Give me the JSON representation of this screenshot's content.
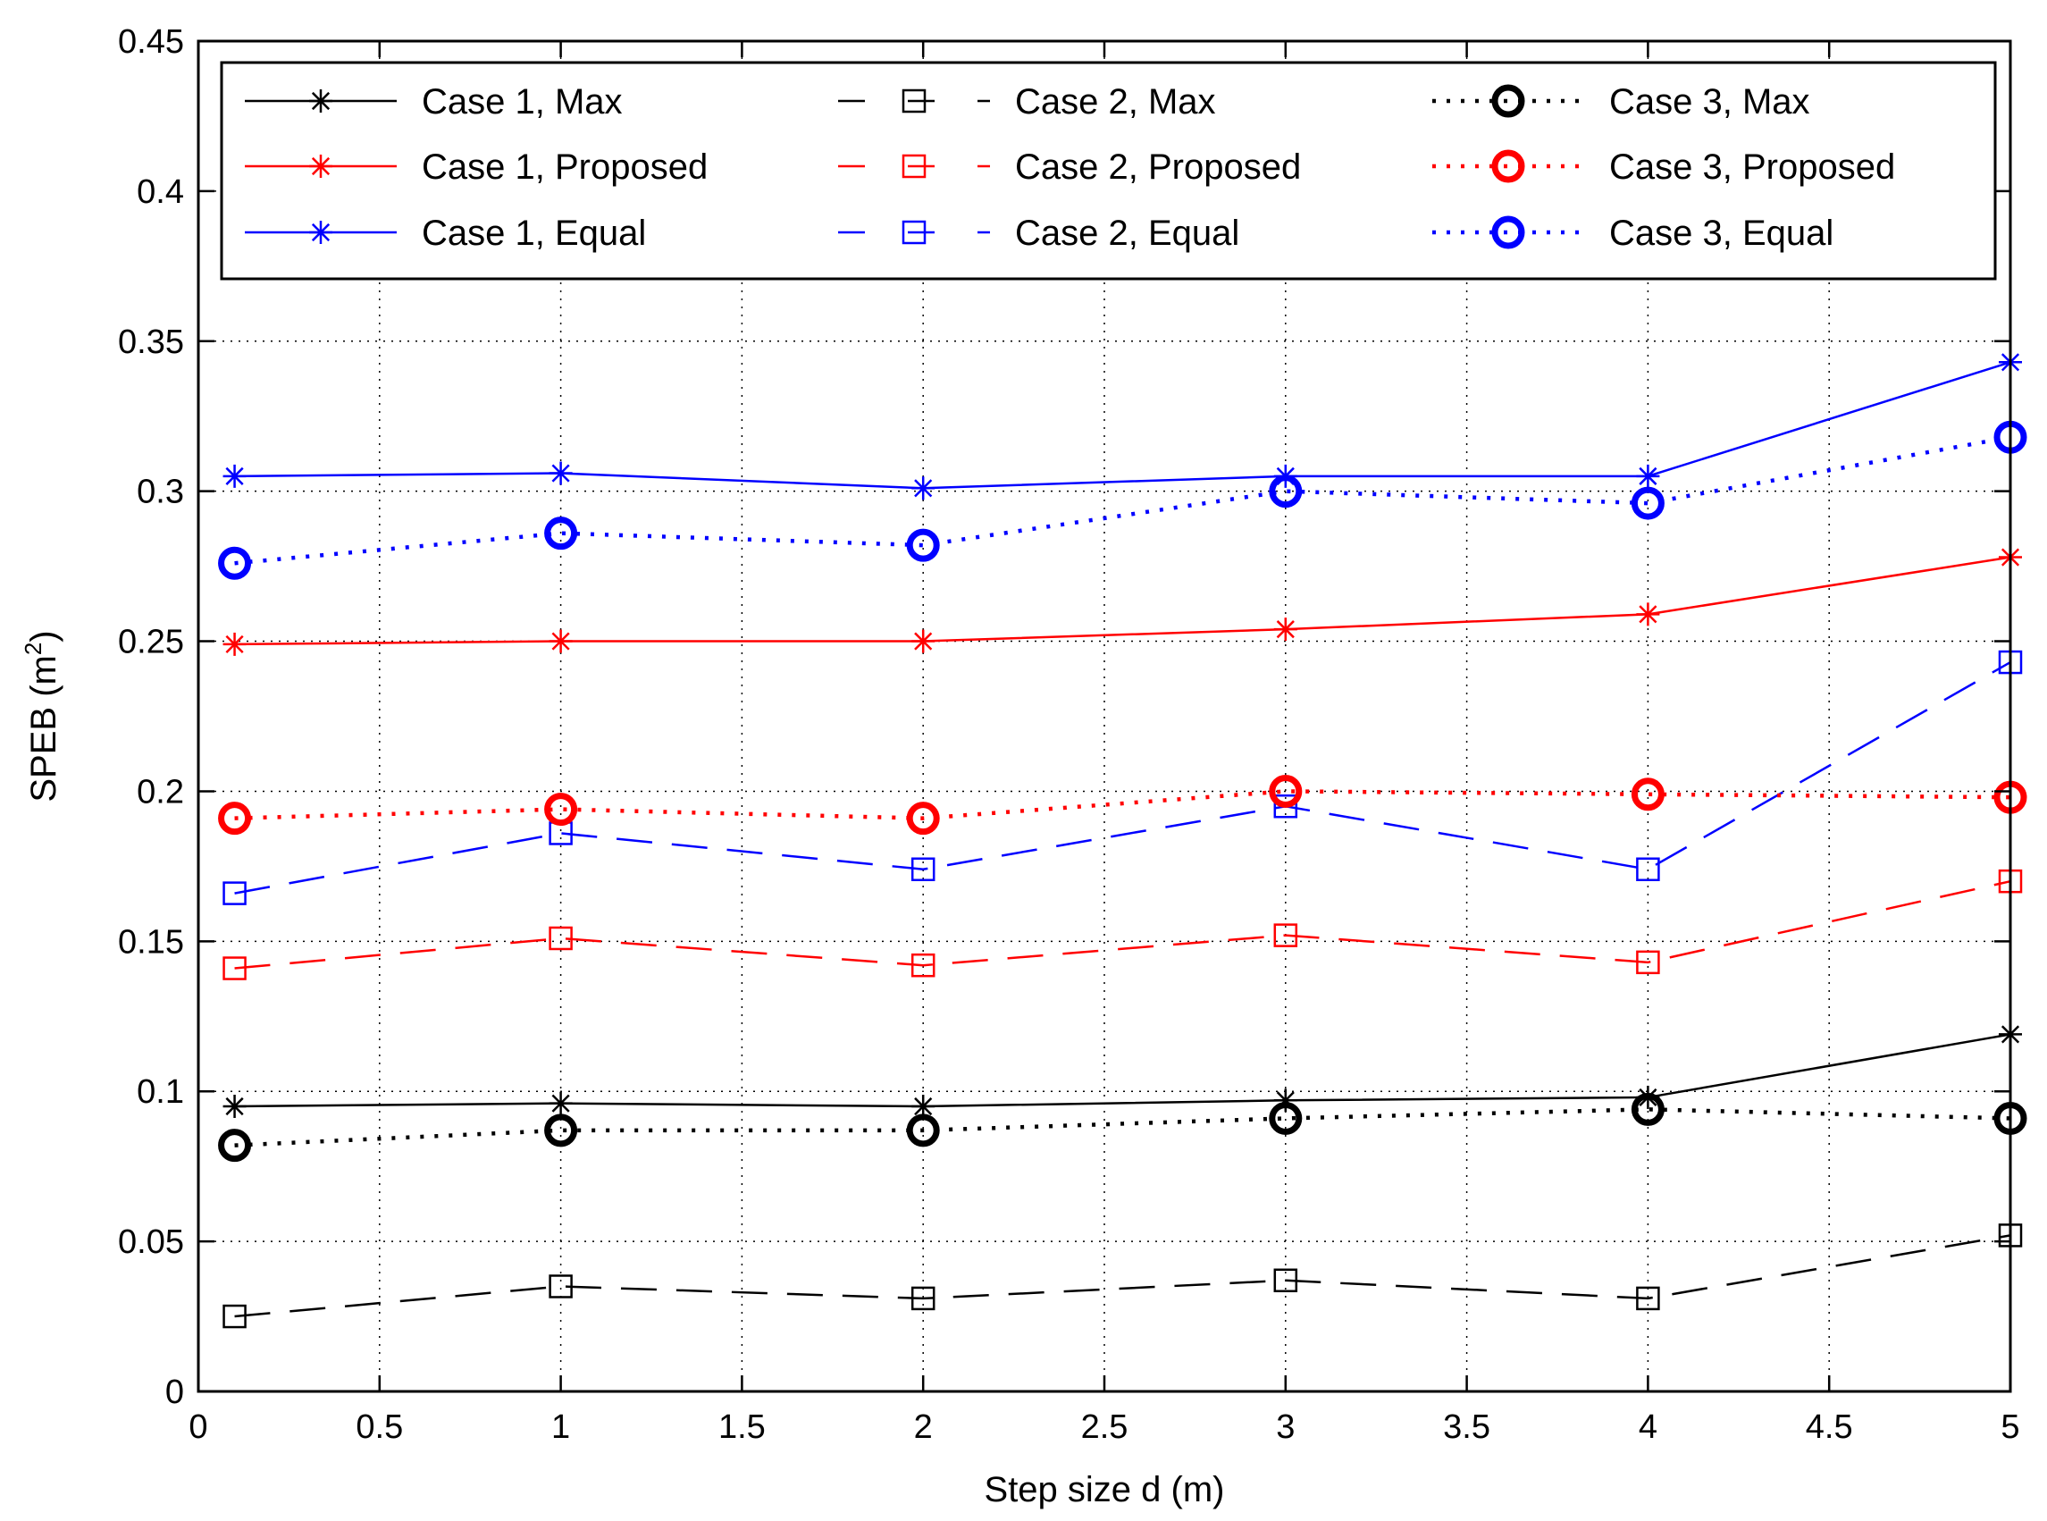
{
  "chart_data": {
    "type": "line",
    "title": "",
    "xlabel": "Step size d (m)",
    "ylabel": "SPEB (m",
    "ylabel_superscript": "2",
    "ylabel_suffix": ")",
    "xlim": [
      0,
      5
    ],
    "ylim": [
      0,
      0.45
    ],
    "grid": true,
    "legend_position": "top",
    "x": [
      0.1,
      1,
      2,
      3,
      4,
      5
    ],
    "xticks": [
      "0",
      "0.5",
      "1",
      "1.5",
      "2",
      "2.5",
      "3",
      "3.5",
      "4",
      "4.5",
      "5"
    ],
    "yticks": [
      "0",
      "0.05",
      "0.1",
      "0.15",
      "0.2",
      "0.25",
      "0.3",
      "0.35",
      "0.4",
      "0.45"
    ],
    "series": [
      {
        "name": "Case 1, Max",
        "color": "#000000",
        "style": "solid",
        "marker": "asterisk",
        "values": [
          0.095,
          0.096,
          0.095,
          0.097,
          0.098,
          0.119
        ]
      },
      {
        "name": "Case 1, Proposed",
        "color": "#ff0000",
        "style": "solid",
        "marker": "asterisk",
        "values": [
          0.249,
          0.25,
          0.25,
          0.254,
          0.259,
          0.278
        ]
      },
      {
        "name": "Case 1, Equal",
        "color": "#0000ff",
        "style": "solid",
        "marker": "asterisk",
        "values": [
          0.305,
          0.306,
          0.301,
          0.305,
          0.305,
          0.343
        ]
      },
      {
        "name": "Case 2, Max",
        "color": "#000000",
        "style": "dashed",
        "marker": "square",
        "values": [
          0.025,
          0.035,
          0.031,
          0.037,
          0.031,
          0.052
        ]
      },
      {
        "name": "Case 2, Proposed",
        "color": "#ff0000",
        "style": "dashed",
        "marker": "square",
        "values": [
          0.141,
          0.151,
          0.142,
          0.152,
          0.143,
          0.17
        ]
      },
      {
        "name": "Case 2, Equal",
        "color": "#0000ff",
        "style": "dashed",
        "marker": "square",
        "values": [
          0.166,
          0.186,
          0.174,
          0.195,
          0.174,
          0.243
        ]
      },
      {
        "name": "Case 3, Max",
        "color": "#000000",
        "style": "dotted",
        "marker": "circle",
        "values": [
          0.082,
          0.087,
          0.087,
          0.091,
          0.094,
          0.091
        ]
      },
      {
        "name": "Case 3, Proposed",
        "color": "#ff0000",
        "style": "dotted",
        "marker": "circle",
        "values": [
          0.191,
          0.194,
          0.191,
          0.2,
          0.199,
          0.198
        ]
      },
      {
        "name": "Case 3, Equal",
        "color": "#0000ff",
        "style": "dotted",
        "marker": "circle",
        "values": [
          0.276,
          0.286,
          0.282,
          0.3,
          0.296,
          0.318
        ]
      }
    ]
  }
}
